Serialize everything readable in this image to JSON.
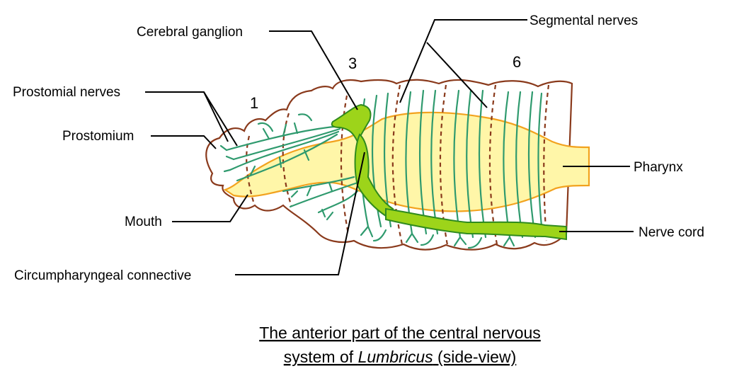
{
  "labels": {
    "cerebral_ganglion": "Cerebral ganglion",
    "segmental_nerves": "Segmental nerves",
    "prostomial_nerves": "Prostomial nerves",
    "prostomium": "Prostomium",
    "pharynx": "Pharynx",
    "mouth": "Mouth",
    "nerve_cord": "Nerve cord",
    "circumpharyngeal_connective": "Circumpharyngeal connective"
  },
  "segment_numbers": [
    "1",
    "3",
    "6"
  ],
  "caption": {
    "line1": "The anterior part of the central nervous",
    "line2_prefix": "system of ",
    "line2_genus": "Lumbricus",
    "line2_suffix": " (side-view)"
  },
  "colors": {
    "body_outline": "#8a3a1c",
    "pharynx_fill": "#fff6a8",
    "pharynx_stroke": "#f2a21e",
    "nerves": "#2f9a6e",
    "nerve_cord": "#9dd41a"
  }
}
